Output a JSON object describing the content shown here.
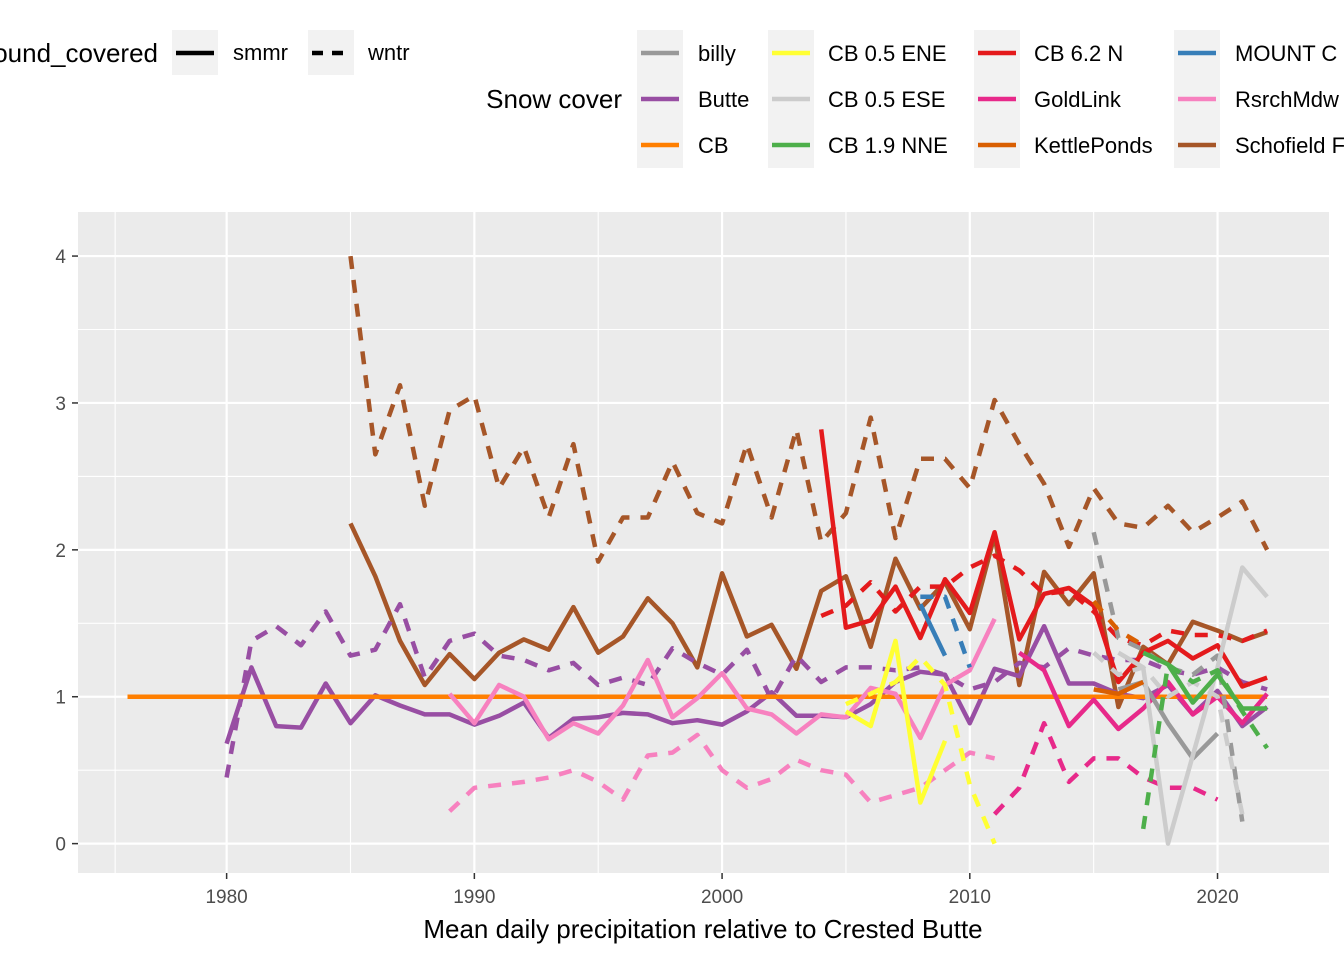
{
  "chart_data": {
    "type": "line",
    "xlabel": "Mean daily precipitation relative to Crested Butte",
    "ylabel": "",
    "xlim": [
      1974,
      2024.5
    ],
    "ylim": [
      -0.2,
      4.3
    ],
    "x_ticks": [
      1980,
      1990,
      2000,
      2010,
      2020
    ],
    "y_ticks": [
      0,
      1,
      2,
      3,
      4
    ],
    "grid": true,
    "legend_placement": "top",
    "linetype_legend": {
      "title": "ground_covered",
      "entries": [
        {
          "label": "smmr",
          "dash": "solid"
        },
        {
          "label": "wntr",
          "dash": "dashed"
        }
      ]
    },
    "color_legend": {
      "title": "Snow cover",
      "entries": [
        {
          "label": "billy",
          "color": "#999999"
        },
        {
          "label": "Butte",
          "color": "#984EA3"
        },
        {
          "label": "CB",
          "color": "#FF7F00"
        },
        {
          "label": "CB 0.5 ENE",
          "color": "#FFFF33"
        },
        {
          "label": "CB 0.5 ESE",
          "color": "#CCCCCC"
        },
        {
          "label": "CB 1.9 NNE",
          "color": "#4DAF4A"
        },
        {
          "label": "CB 6.2 N",
          "color": "#E41A1C"
        },
        {
          "label": "GoldLink",
          "color": "#E7298A"
        },
        {
          "label": "KettlePonds",
          "color": "#D95F02"
        },
        {
          "label": "MOUNT C",
          "color": "#377EB8"
        },
        {
          "label": "RsrchMdw",
          "color": "#F781BF"
        },
        {
          "label": "Schofield F",
          "color": "#A65628"
        }
      ]
    },
    "series": [
      {
        "station": "Schofield F",
        "cover": "wntr",
        "color": "#A65628",
        "x": [
          1985,
          1986,
          1987,
          1988,
          1989,
          1990,
          1991,
          1992,
          1993,
          1994,
          1995,
          1996,
          1997,
          1998,
          1999,
          2000,
          2001,
          2002,
          2003,
          2004,
          2005,
          2006,
          2007,
          2008,
          2009,
          2010,
          2011,
          2012,
          2013,
          2014,
          2015,
          2016,
          2017,
          2018,
          2019,
          2020,
          2021,
          2022
        ],
        "y": [
          4.0,
          2.65,
          3.12,
          2.3,
          2.95,
          3.05,
          2.42,
          2.7,
          2.22,
          2.72,
          1.92,
          2.22,
          2.22,
          2.6,
          2.25,
          2.18,
          2.72,
          2.22,
          2.82,
          2.05,
          2.25,
          2.9,
          2.08,
          2.62,
          2.62,
          2.42,
          3.02,
          2.72,
          2.45,
          2.02,
          2.42,
          2.18,
          2.15,
          2.3,
          2.12,
          2.22,
          2.33,
          2.0
        ]
      },
      {
        "station": "Schofield F",
        "cover": "smmr",
        "color": "#A65628",
        "x": [
          1985,
          1986,
          1987,
          1988,
          1989,
          1990,
          1991,
          1992,
          1993,
          1994,
          1995,
          1996,
          1997,
          1998,
          1999,
          2000,
          2001,
          2002,
          2003,
          2004,
          2005,
          2006,
          2007,
          2008,
          2009,
          2010,
          2011,
          2012,
          2013,
          2014,
          2015,
          2016,
          2017,
          2018,
          2019,
          2020,
          2021,
          2022
        ],
        "y": [
          2.18,
          1.82,
          1.38,
          1.08,
          1.29,
          1.12,
          1.3,
          1.39,
          1.32,
          1.61,
          1.3,
          1.41,
          1.67,
          1.5,
          1.2,
          1.84,
          1.41,
          1.49,
          1.19,
          1.72,
          1.82,
          1.34,
          1.94,
          1.6,
          1.78,
          1.46,
          2.1,
          1.08,
          1.85,
          1.63,
          1.84,
          0.93,
          1.34,
          1.22,
          1.51,
          1.45,
          1.38,
          1.44
        ]
      },
      {
        "station": "Butte",
        "cover": "wntr",
        "color": "#984EA3",
        "x": [
          1980,
          1981,
          1982,
          1983,
          1984,
          1985,
          1986,
          1987,
          1988,
          1989,
          1990,
          1991,
          1992,
          1993,
          1994,
          1995,
          1996,
          1997,
          1998,
          1999,
          2000,
          2001,
          2002,
          2003,
          2004,
          2005,
          2006,
          2007,
          2008,
          2009,
          2010,
          2011,
          2012,
          2013,
          2014,
          2015,
          2016,
          2017,
          2018,
          2019,
          2020,
          2021,
          2022
        ],
        "y": [
          0.45,
          1.38,
          1.48,
          1.35,
          1.58,
          1.28,
          1.32,
          1.63,
          1.13,
          1.38,
          1.43,
          1.28,
          1.25,
          1.18,
          1.23,
          1.08,
          1.13,
          1.08,
          1.33,
          1.23,
          1.15,
          1.32,
          0.98,
          1.28,
          1.1,
          1.2,
          1.2,
          1.18,
          1.2,
          1.15,
          1.05,
          1.1,
          1.23,
          1.2,
          1.33,
          1.28,
          1.25,
          1.25,
          1.18,
          1.15,
          1.2,
          1.1,
          1.05
        ]
      },
      {
        "station": "Butte",
        "cover": "smmr",
        "color": "#984EA3",
        "x": [
          1980,
          1981,
          1982,
          1983,
          1984,
          1985,
          1986,
          1987,
          1988,
          1989,
          1990,
          1991,
          1992,
          1993,
          1994,
          1995,
          1996,
          1997,
          1998,
          1999,
          2000,
          2001,
          2002,
          2003,
          2004,
          2005,
          2006,
          2007,
          2008,
          2009,
          2010,
          2011,
          2012,
          2013,
          2014,
          2015,
          2016,
          2017,
          2018,
          2019,
          2020,
          2021,
          2022
        ],
        "y": [
          0.68,
          1.2,
          0.8,
          0.79,
          1.09,
          0.82,
          1.01,
          0.94,
          0.88,
          0.88,
          0.81,
          0.87,
          0.96,
          0.72,
          0.85,
          0.86,
          0.89,
          0.88,
          0.82,
          0.84,
          0.81,
          0.9,
          1.03,
          0.87,
          0.87,
          0.86,
          0.95,
          1.1,
          1.17,
          1.15,
          0.82,
          1.19,
          1.14,
          1.48,
          1.09,
          1.09,
          1.02,
          0.99,
          1.08,
          0.88,
          1.04,
          0.8,
          0.93
        ]
      },
      {
        "station": "CB",
        "cover": "smmr",
        "color": "#FF7F00",
        "x": [
          1976,
          2022
        ],
        "y": [
          1.0,
          1.0
        ]
      },
      {
        "station": "RsrchMdw",
        "cover": "wntr",
        "color": "#F781BF",
        "x": [
          1989,
          1990,
          1991,
          1992,
          1993,
          1994,
          1995,
          1996,
          1997,
          1998,
          1999,
          2000,
          2001,
          2002,
          2003,
          2004,
          2005,
          2006,
          2007,
          2008,
          2009,
          2010,
          2011
        ],
        "y": [
          0.22,
          0.38,
          0.4,
          0.42,
          0.45,
          0.5,
          0.42,
          0.3,
          0.6,
          0.62,
          0.74,
          0.5,
          0.38,
          0.44,
          0.57,
          0.5,
          0.47,
          0.28,
          0.33,
          0.38,
          0.5,
          0.62,
          0.58
        ]
      },
      {
        "station": "RsrchMdw",
        "cover": "smmr",
        "color": "#F781BF",
        "x": [
          1989,
          1990,
          1991,
          1992,
          1993,
          1994,
          1995,
          1996,
          1997,
          1998,
          1999,
          2000,
          2001,
          2002,
          2003,
          2004,
          2005,
          2006,
          2007,
          2008,
          2009,
          2010,
          2011
        ],
        "y": [
          1.02,
          0.82,
          1.08,
          1.0,
          0.71,
          0.82,
          0.75,
          0.94,
          1.25,
          0.86,
          0.99,
          1.16,
          0.92,
          0.88,
          0.75,
          0.88,
          0.86,
          1.06,
          1.02,
          0.72,
          1.08,
          1.18,
          1.53
        ]
      },
      {
        "station": "CB 6.2 N",
        "cover": "wntr",
        "color": "#E41A1C",
        "x": [
          2004,
          2005,
          2006,
          2007,
          2008,
          2009,
          2010,
          2011,
          2012,
          2013,
          2014,
          2015,
          2016,
          2017,
          2018,
          2019,
          2020,
          2021,
          2022
        ],
        "y": [
          1.55,
          1.62,
          1.78,
          1.58,
          1.75,
          1.75,
          1.88,
          1.96,
          1.86,
          1.7,
          1.72,
          1.58,
          1.4,
          1.35,
          1.45,
          1.42,
          1.42,
          1.38,
          1.45
        ]
      },
      {
        "station": "CB 6.2 N",
        "cover": "smmr",
        "color": "#E41A1C",
        "x": [
          2004,
          2005,
          2006,
          2007,
          2008,
          2009,
          2010,
          2011,
          2012,
          2013,
          2014,
          2015,
          2016,
          2017,
          2018,
          2019,
          2020,
          2021,
          2022
        ],
        "y": [
          2.82,
          1.47,
          1.52,
          1.75,
          1.4,
          1.8,
          1.57,
          2.12,
          1.39,
          1.7,
          1.74,
          1.62,
          1.1,
          1.3,
          1.38,
          1.26,
          1.35,
          1.07,
          1.13
        ]
      },
      {
        "station": "CB 0.5 ENE",
        "cover": "smmr",
        "color": "#FFFF33",
        "x": [
          2005,
          2006,
          2007,
          2008,
          2009
        ],
        "y": [
          0.9,
          0.8,
          1.38,
          0.28,
          0.7
        ]
      },
      {
        "station": "CB 0.5 ENE",
        "cover": "wntr",
        "color": "#FFFF33",
        "x": [
          2005,
          2006,
          2007,
          2008,
          2009,
          2010,
          2011
        ],
        "y": [
          0.95,
          1.02,
          1.1,
          1.27,
          1.08,
          0.4,
          0.0
        ]
      },
      {
        "station": "MOUNT C",
        "cover": "smmr",
        "color": "#377EB8",
        "x": [
          2008,
          2009
        ],
        "y": [
          1.63,
          1.28
        ]
      },
      {
        "station": "MOUNT C",
        "cover": "wntr",
        "color": "#377EB8",
        "x": [
          2008,
          2009,
          2010
        ],
        "y": [
          1.68,
          1.68,
          1.2
        ]
      },
      {
        "station": "GoldLink",
        "cover": "smmr",
        "color": "#E7298A",
        "x": [
          2012,
          2013,
          2014,
          2015,
          2016,
          2017,
          2018,
          2019,
          2020,
          2021,
          2022
        ],
        "y": [
          1.3,
          1.18,
          0.8,
          0.98,
          0.78,
          0.92,
          1.1,
          0.88,
          1.0,
          0.82,
          1.02
        ]
      },
      {
        "station": "GoldLink",
        "cover": "wntr",
        "color": "#E7298A",
        "x": [
          2011,
          2012,
          2013,
          2014,
          2015,
          2016,
          2017,
          2018,
          2019,
          2020
        ],
        "y": [
          0.2,
          0.38,
          0.82,
          0.42,
          0.58,
          0.58,
          0.45,
          0.38,
          0.38,
          0.3
        ]
      },
      {
        "station": "billy",
        "cover": "wntr",
        "color": "#999999",
        "x": [
          2015,
          2016,
          2017,
          2018,
          2019,
          2020,
          2021
        ],
        "y": [
          2.12,
          1.4,
          1.32,
          1.2,
          1.15,
          1.28,
          0.15
        ]
      },
      {
        "station": "billy",
        "cover": "smmr",
        "color": "#999999",
        "x": [
          2016,
          2017,
          2018,
          2019,
          2020
        ],
        "y": [
          1.05,
          1.1,
          0.82,
          0.58,
          0.75
        ]
      },
      {
        "station": "CB 0.5 ESE",
        "cover": "smmr",
        "color": "#CCCCCC",
        "x": [
          2016,
          2017,
          2018,
          2019,
          2020,
          2021,
          2022
        ],
        "y": [
          1.3,
          1.2,
          0.0,
          0.6,
          1.2,
          1.88,
          1.68
        ]
      },
      {
        "station": "CB 0.5 ESE",
        "cover": "wntr",
        "color": "#CCCCCC",
        "x": [
          2015,
          2016,
          2017,
          2018,
          2019,
          2020,
          2021
        ],
        "y": [
          1.3,
          1.15,
          1.2,
          1.0,
          1.1,
          1.0,
          0.2
        ]
      },
      {
        "station": "CB 1.9 NNE",
        "cover": "smmr",
        "color": "#4DAF4A",
        "x": [
          2017,
          2018,
          2019,
          2020,
          2021,
          2022
        ],
        "y": [
          1.3,
          1.22,
          0.96,
          1.15,
          0.92,
          0.92
        ]
      },
      {
        "station": "CB 1.9 NNE",
        "cover": "wntr",
        "color": "#4DAF4A",
        "x": [
          2017,
          2018,
          2019,
          2020,
          2021,
          2022
        ],
        "y": [
          0.1,
          1.22,
          1.1,
          1.18,
          0.9,
          0.65
        ]
      },
      {
        "station": "KettlePonds",
        "cover": "smmr",
        "color": "#D95F02",
        "x": [
          2015,
          2016,
          2017
        ],
        "y": [
          1.05,
          1.02,
          1.1
        ]
      },
      {
        "station": "KettlePonds",
        "cover": "wntr",
        "color": "#D95F02",
        "x": [
          2015,
          2016,
          2017
        ],
        "y": [
          1.65,
          1.45,
          1.35
        ]
      }
    ]
  }
}
